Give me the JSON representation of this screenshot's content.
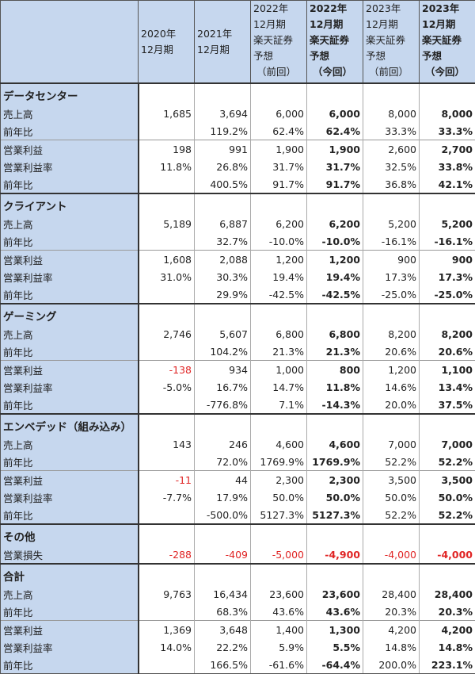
{
  "header": [
    "",
    "2020年\n12月期",
    "2021年\n12月期",
    "2022年\n12月期\n楽天証券\n予想\n（前回）",
    "2022年\n12月期\n楽天証券\n予想\n（今回）",
    "2023年\n12月期\n楽天証券\n予想\n（前回）",
    "2023年\n12月期\n楽天証券\n予想\n（今回）"
  ],
  "bold_columns": [
    3,
    5
  ],
  "negative_color": "#e02424",
  "label_bg_color": "#c6d7ee",
  "sections": [
    {
      "title": "データセンター",
      "rows": [
        {
          "label": "売上高",
          "values": [
            "1,685",
            "3,694",
            "6,000",
            "6,000",
            "8,000",
            "8,000"
          ]
        },
        {
          "label": "前年比",
          "values": [
            "",
            "119.2%",
            "62.4%",
            "62.4%",
            "33.3%",
            "33.3%"
          ]
        },
        {
          "label": "営業利益",
          "group_start": true,
          "values": [
            "198",
            "991",
            "1,900",
            "1,900",
            "2,600",
            "2,700"
          ]
        },
        {
          "label": "営業利益率",
          "values": [
            "11.8%",
            "26.8%",
            "31.7%",
            "31.7%",
            "32.5%",
            "33.8%"
          ]
        },
        {
          "label": "前年比",
          "values": [
            "",
            "400.5%",
            "91.7%",
            "91.7%",
            "36.8%",
            "42.1%"
          ]
        }
      ]
    },
    {
      "title": "クライアント",
      "rows": [
        {
          "label": "売上高",
          "values": [
            "5,189",
            "6,887",
            "6,200",
            "6,200",
            "5,200",
            "5,200"
          ]
        },
        {
          "label": "前年比",
          "values": [
            "",
            "32.7%",
            "-10.0%",
            "-10.0%",
            "-16.1%",
            "-16.1%"
          ]
        },
        {
          "label": "営業利益",
          "group_start": true,
          "values": [
            "1,608",
            "2,088",
            "1,200",
            "1,200",
            "900",
            "900"
          ]
        },
        {
          "label": "営業利益率",
          "values": [
            "31.0%",
            "30.3%",
            "19.4%",
            "19.4%",
            "17.3%",
            "17.3%"
          ]
        },
        {
          "label": "前年比",
          "values": [
            "",
            "29.9%",
            "-42.5%",
            "-42.5%",
            "-25.0%",
            "-25.0%"
          ]
        }
      ]
    },
    {
      "title": "ゲーミング",
      "rows": [
        {
          "label": "売上高",
          "values": [
            "2,746",
            "5,607",
            "6,800",
            "6,800",
            "8,200",
            "8,200"
          ]
        },
        {
          "label": "前年比",
          "values": [
            "",
            "104.2%",
            "21.3%",
            "21.3%",
            "20.6%",
            "20.6%"
          ]
        },
        {
          "label": "営業利益",
          "group_start": true,
          "red": [
            0
          ],
          "values": [
            "-138",
            "934",
            "1,000",
            "800",
            "1,200",
            "1,100"
          ]
        },
        {
          "label": "営業利益率",
          "values": [
            "-5.0%",
            "16.7%",
            "14.7%",
            "11.8%",
            "14.6%",
            "13.4%"
          ]
        },
        {
          "label": "前年比",
          "values": [
            "",
            "-776.8%",
            "7.1%",
            "-14.3%",
            "20.0%",
            "37.5%"
          ]
        }
      ]
    },
    {
      "title": "エンベデッド（組み込み）",
      "rows": [
        {
          "label": "売上高",
          "values": [
            "143",
            "246",
            "4,600",
            "4,600",
            "7,000",
            "7,000"
          ]
        },
        {
          "label": "前年比",
          "values": [
            "",
            "72.0%",
            "1769.9%",
            "1769.9%",
            "52.2%",
            "52.2%"
          ]
        },
        {
          "label": "営業利益",
          "group_start": true,
          "red": [
            0
          ],
          "values": [
            "-11",
            "44",
            "2,300",
            "2,300",
            "3,500",
            "3,500"
          ]
        },
        {
          "label": "営業利益率",
          "values": [
            "-7.7%",
            "17.9%",
            "50.0%",
            "50.0%",
            "50.0%",
            "50.0%"
          ]
        },
        {
          "label": "前年比",
          "values": [
            "",
            "-500.0%",
            "5127.3%",
            "5127.3%",
            "52.2%",
            "52.2%"
          ]
        }
      ]
    },
    {
      "title": "その他",
      "rows": [
        {
          "label": "営業損失",
          "red": [
            0,
            1,
            2,
            3,
            4,
            5
          ],
          "values": [
            "-288",
            "-409",
            "-5,000",
            "-4,900",
            "-4,000",
            "-4,000"
          ]
        }
      ]
    },
    {
      "title": "合計",
      "rows": [
        {
          "label": "売上高",
          "values": [
            "9,763",
            "16,434",
            "23,600",
            "23,600",
            "28,400",
            "28,400"
          ]
        },
        {
          "label": "前年比",
          "values": [
            "",
            "68.3%",
            "43.6%",
            "43.6%",
            "20.3%",
            "20.3%"
          ]
        },
        {
          "label": "営業利益",
          "group_start": true,
          "values": [
            "1,369",
            "3,648",
            "1,400",
            "1,300",
            "4,200",
            "4,200"
          ]
        },
        {
          "label": "営業利益率",
          "values": [
            "14.0%",
            "22.2%",
            "5.9%",
            "5.5%",
            "14.8%",
            "14.8%"
          ]
        },
        {
          "label": "前年比",
          "values": [
            "",
            "166.5%",
            "-61.6%",
            "-64.4%",
            "200.0%",
            "223.1%"
          ]
        }
      ]
    }
  ]
}
